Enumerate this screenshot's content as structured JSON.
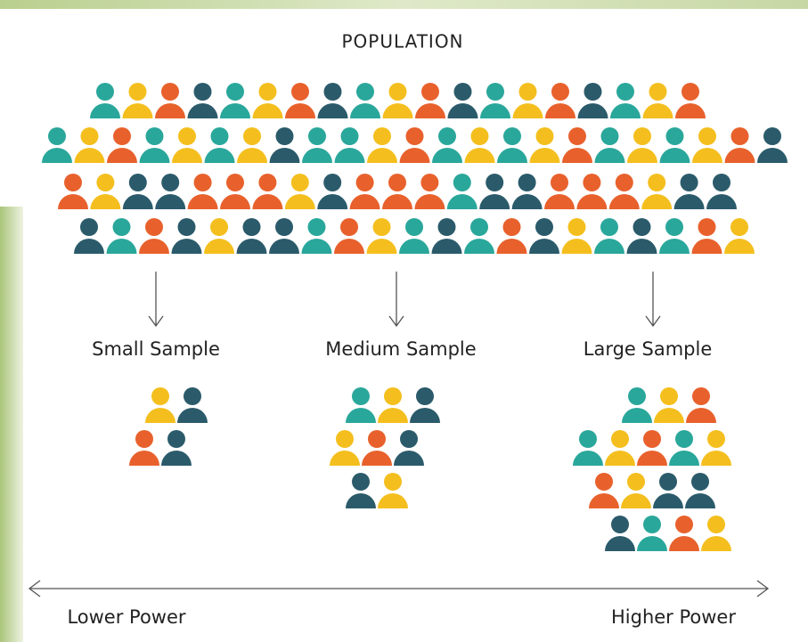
{
  "title": "POPULATION",
  "samples": [
    {
      "label": "Small Sample"
    },
    {
      "label": "Medium Sample"
    },
    {
      "label": "Large Sample"
    }
  ],
  "scale": {
    "low": "Lower Power",
    "high": "Higher Power"
  }
}
